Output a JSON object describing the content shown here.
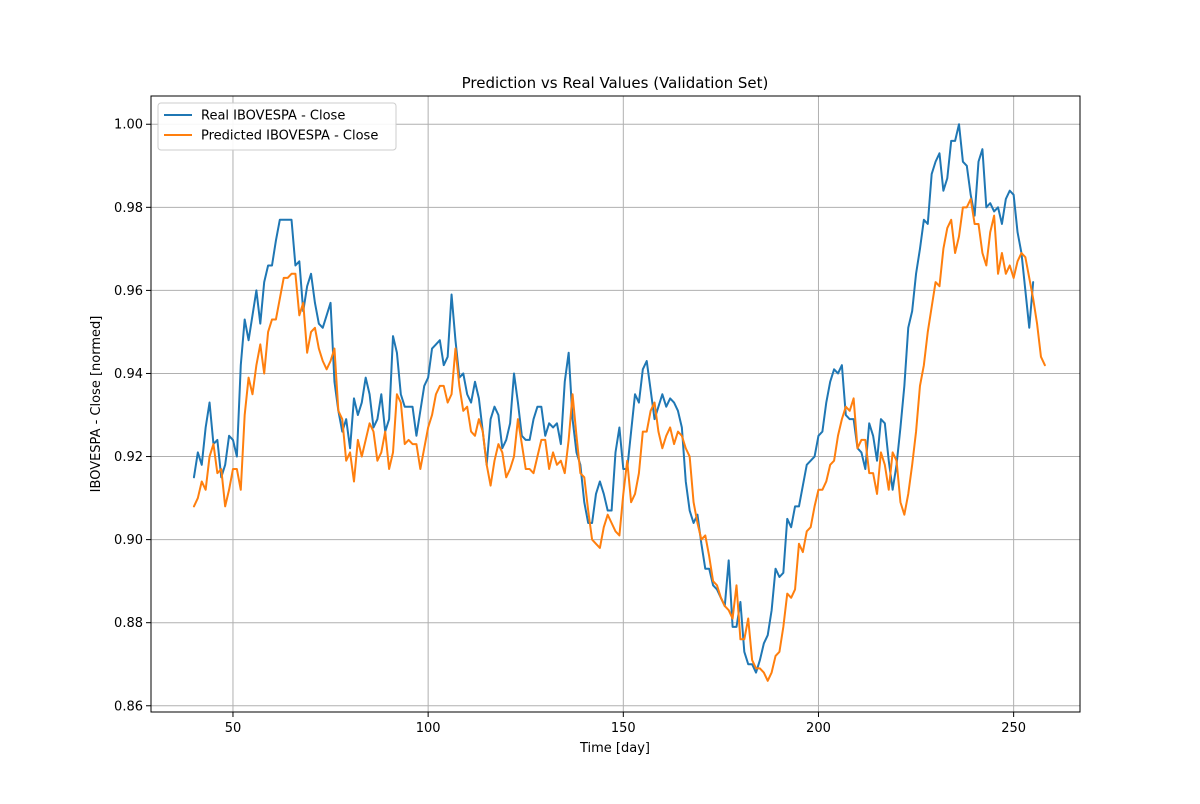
{
  "chart_data": {
    "type": "line",
    "title": "Prediction vs Real Values (Validation Set)",
    "xlabel": "Time [day]",
    "ylabel": "IBOVESPA - Close [normed]",
    "xlim": [
      29,
      267
    ],
    "ylim": [
      0.8585,
      1.0068
    ],
    "xticks": [
      50,
      100,
      150,
      200,
      250
    ],
    "yticks": [
      0.86,
      0.88,
      0.9,
      0.92,
      0.94,
      0.96,
      0.98,
      1.0
    ],
    "ytick_labels": [
      "0.86",
      "0.88",
      "0.90",
      "0.92",
      "0.94",
      "0.96",
      "0.98",
      "1.00"
    ],
    "grid": true,
    "legend_position": "upper-left",
    "x_start": 40,
    "series": [
      {
        "name": "Real IBOVESPA - Close",
        "color": "#1f77b4",
        "values": [
          0.915,
          0.921,
          0.918,
          0.927,
          0.933,
          0.923,
          0.924,
          0.915,
          0.918,
          0.925,
          0.924,
          0.92,
          0.942,
          0.953,
          0.948,
          0.954,
          0.96,
          0.952,
          0.962,
          0.966,
          0.966,
          0.972,
          0.977,
          0.977,
          0.977,
          0.977,
          0.966,
          0.967,
          0.955,
          0.961,
          0.964,
          0.957,
          0.952,
          0.951,
          0.954,
          0.957,
          0.938,
          0.931,
          0.926,
          0.929,
          0.922,
          0.934,
          0.93,
          0.933,
          0.939,
          0.935,
          0.927,
          0.929,
          0.935,
          0.926,
          0.929,
          0.949,
          0.945,
          0.935,
          0.932,
          0.932,
          0.932,
          0.925,
          0.931,
          0.937,
          0.939,
          0.946,
          0.947,
          0.948,
          0.942,
          0.944,
          0.959,
          0.948,
          0.939,
          0.94,
          0.935,
          0.933,
          0.938,
          0.934,
          0.926,
          0.918,
          0.929,
          0.932,
          0.93,
          0.922,
          0.924,
          0.928,
          0.94,
          0.933,
          0.925,
          0.924,
          0.924,
          0.929,
          0.932,
          0.932,
          0.925,
          0.928,
          0.927,
          0.928,
          0.923,
          0.938,
          0.945,
          0.929,
          0.921,
          0.918,
          0.909,
          0.904,
          0.904,
          0.911,
          0.914,
          0.911,
          0.907,
          0.907,
          0.921,
          0.927,
          0.917,
          0.917,
          0.926,
          0.935,
          0.933,
          0.941,
          0.943,
          0.936,
          0.929,
          0.932,
          0.935,
          0.932,
          0.934,
          0.933,
          0.931,
          0.927,
          0.914,
          0.907,
          0.904,
          0.906,
          0.899,
          0.893,
          0.893,
          0.889,
          0.888,
          0.886,
          0.884,
          0.895,
          0.879,
          0.879,
          0.885,
          0.873,
          0.87,
          0.87,
          0.868,
          0.871,
          0.875,
          0.877,
          0.883,
          0.893,
          0.891,
          0.892,
          0.905,
          0.903,
          0.908,
          0.908,
          0.913,
          0.918,
          0.919,
          0.92,
          0.925,
          0.926,
          0.933,
          0.938,
          0.941,
          0.94,
          0.942,
          0.93,
          0.929,
          0.929,
          0.922,
          0.921,
          0.917,
          0.928,
          0.925,
          0.919,
          0.929,
          0.928,
          0.919,
          0.912,
          0.918,
          0.927,
          0.937,
          0.951,
          0.955,
          0.964,
          0.97,
          0.977,
          0.976,
          0.988,
          0.991,
          0.993,
          0.984,
          0.987,
          0.996,
          0.996,
          1.0,
          0.991,
          0.99,
          0.983,
          0.978,
          0.991,
          0.994,
          0.98,
          0.981,
          0.979,
          0.98,
          0.976,
          0.982,
          0.984,
          0.983,
          0.974,
          0.969,
          0.96,
          0.951,
          0.962
        ]
      },
      {
        "name": "Predicted IBOVESPA - Close",
        "color": "#ff7f0e",
        "values": [
          0.908,
          0.91,
          0.914,
          0.912,
          0.92,
          0.923,
          0.916,
          0.917,
          0.908,
          0.912,
          0.917,
          0.917,
          0.912,
          0.93,
          0.939,
          0.935,
          0.942,
          0.947,
          0.94,
          0.95,
          0.953,
          0.953,
          0.958,
          0.963,
          0.963,
          0.964,
          0.964,
          0.954,
          0.957,
          0.945,
          0.95,
          0.951,
          0.946,
          0.943,
          0.941,
          0.943,
          0.946,
          0.931,
          0.929,
          0.919,
          0.921,
          0.914,
          0.924,
          0.92,
          0.924,
          0.928,
          0.926,
          0.919,
          0.921,
          0.926,
          0.917,
          0.921,
          0.935,
          0.933,
          0.923,
          0.924,
          0.923,
          0.923,
          0.917,
          0.922,
          0.927,
          0.93,
          0.935,
          0.937,
          0.937,
          0.933,
          0.935,
          0.946,
          0.937,
          0.931,
          0.932,
          0.926,
          0.925,
          0.929,
          0.926,
          0.918,
          0.913,
          0.919,
          0.923,
          0.921,
          0.915,
          0.917,
          0.92,
          0.929,
          0.923,
          0.917,
          0.917,
          0.916,
          0.92,
          0.924,
          0.924,
          0.917,
          0.921,
          0.918,
          0.919,
          0.916,
          0.924,
          0.935,
          0.925,
          0.916,
          0.915,
          0.907,
          0.9,
          0.899,
          0.898,
          0.903,
          0.906,
          0.904,
          0.902,
          0.901,
          0.911,
          0.919,
          0.909,
          0.911,
          0.916,
          0.926,
          0.926,
          0.931,
          0.933,
          0.926,
          0.922,
          0.925,
          0.927,
          0.923,
          0.926,
          0.925,
          0.922,
          0.92,
          0.909,
          0.904,
          0.9,
          0.901,
          0.896,
          0.89,
          0.889,
          0.886,
          0.884,
          0.883,
          0.881,
          0.889,
          0.876,
          0.876,
          0.881,
          0.871,
          0.869,
          0.869,
          0.868,
          0.866,
          0.868,
          0.872,
          0.873,
          0.879,
          0.887,
          0.886,
          0.888,
          0.899,
          0.897,
          0.902,
          0.903,
          0.908,
          0.912,
          0.912,
          0.914,
          0.918,
          0.919,
          0.925,
          0.929,
          0.932,
          0.931,
          0.934,
          0.922,
          0.924,
          0.924,
          0.916,
          0.916,
          0.911,
          0.921,
          0.918,
          0.912,
          0.921,
          0.919,
          0.909,
          0.906,
          0.911,
          0.918,
          0.926,
          0.937,
          0.942,
          0.95,
          0.956,
          0.962,
          0.961,
          0.97,
          0.975,
          0.977,
          0.969,
          0.973,
          0.98,
          0.98,
          0.982,
          0.976,
          0.976,
          0.969,
          0.966,
          0.974,
          0.978,
          0.964,
          0.969,
          0.964,
          0.966,
          0.963,
          0.967,
          0.969,
          0.968,
          0.963,
          0.958,
          0.952,
          0.944,
          0.942
        ]
      }
    ]
  }
}
